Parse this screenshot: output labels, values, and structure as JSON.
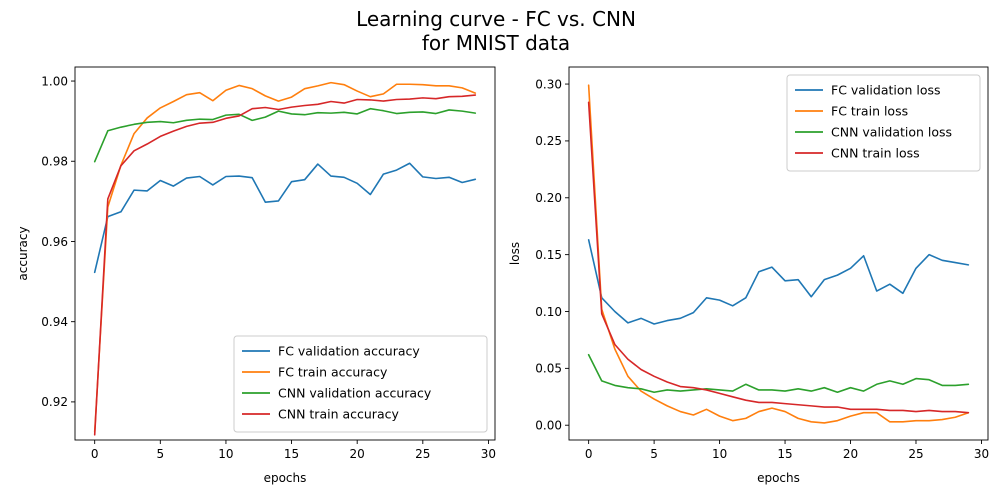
{
  "figure": {
    "title_line1": "Learning curve - FC vs. CNN",
    "title_line2": "for MNIST data"
  },
  "chart_data": [
    {
      "type": "line",
      "xlabel": "epochs",
      "ylabel": "accuracy",
      "xlim": [
        -1.5,
        30.5
      ],
      "ylim": [
        0.9105,
        1.0035
      ],
      "xticks": [
        0,
        5,
        10,
        15,
        20,
        25,
        30
      ],
      "yticks": [
        0.92,
        0.94,
        0.96,
        0.98,
        1.0
      ],
      "ytick_labels": [
        "0.92",
        "0.94",
        "0.96",
        "0.98",
        "1.00"
      ],
      "legend_position": "lower-right",
      "x": [
        0,
        1,
        2,
        3,
        4,
        5,
        6,
        7,
        8,
        9,
        10,
        11,
        12,
        13,
        14,
        15,
        16,
        17,
        18,
        19,
        20,
        21,
        22,
        23,
        24,
        25,
        26,
        27,
        28,
        29
      ],
      "series": [
        {
          "name": "FC validation accuracy",
          "color": "#1f77b4",
          "values": [
            0.9523,
            0.9662,
            0.9674,
            0.9728,
            0.9726,
            0.9752,
            0.9738,
            0.9758,
            0.9762,
            0.9741,
            0.9762,
            0.9763,
            0.9759,
            0.9698,
            0.9701,
            0.9749,
            0.9754,
            0.9793,
            0.9763,
            0.976,
            0.9745,
            0.9717,
            0.9768,
            0.9778,
            0.9795,
            0.9761,
            0.9757,
            0.976,
            0.9747,
            0.9755
          ]
        },
        {
          "name": "FC train accuracy",
          "color": "#ff7f0e",
          "values": [
            0.9125,
            0.9686,
            0.979,
            0.9869,
            0.9908,
            0.9933,
            0.9949,
            0.9966,
            0.9971,
            0.9951,
            0.9977,
            0.9989,
            0.9981,
            0.9963,
            0.995,
            0.996,
            0.9981,
            0.9988,
            0.9996,
            0.9991,
            0.9975,
            0.9961,
            0.9968,
            0.9992,
            0.9992,
            0.9991,
            0.9988,
            0.9988,
            0.9983,
            0.997
          ]
        },
        {
          "name": "CNN validation accuracy",
          "color": "#2ca02c",
          "values": [
            0.9799,
            0.9876,
            0.9885,
            0.9892,
            0.9897,
            0.9899,
            0.9896,
            0.9902,
            0.9905,
            0.9904,
            0.9915,
            0.9917,
            0.9902,
            0.991,
            0.9925,
            0.9918,
            0.9916,
            0.9921,
            0.992,
            0.9922,
            0.9918,
            0.9931,
            0.9926,
            0.9919,
            0.9922,
            0.9923,
            0.9919,
            0.9928,
            0.9925,
            0.992
          ]
        },
        {
          "name": "CNN train accuracy",
          "color": "#d62728",
          "values": [
            0.9118,
            0.9706,
            0.9789,
            0.9826,
            0.9843,
            0.9862,
            0.9875,
            0.9887,
            0.9895,
            0.9897,
            0.9907,
            0.9913,
            0.9931,
            0.9934,
            0.9929,
            0.9935,
            0.9939,
            0.9942,
            0.9949,
            0.9945,
            0.9954,
            0.9953,
            0.995,
            0.9954,
            0.9955,
            0.9958,
            0.9956,
            0.9961,
            0.9962,
            0.9965
          ]
        }
      ]
    },
    {
      "type": "line",
      "xlabel": "epochs",
      "ylabel": "loss",
      "xlim": [
        -1.5,
        30.5
      ],
      "ylim": [
        -0.013,
        0.315
      ],
      "xticks": [
        0,
        5,
        10,
        15,
        20,
        25,
        30
      ],
      "yticks": [
        0.0,
        0.05,
        0.1,
        0.15,
        0.2,
        0.25,
        0.3
      ],
      "ytick_labels": [
        "0.00",
        "0.05",
        "0.10",
        "0.15",
        "0.20",
        "0.25",
        "0.30"
      ],
      "legend_position": "upper-right",
      "x": [
        0,
        1,
        2,
        3,
        4,
        5,
        6,
        7,
        8,
        9,
        10,
        11,
        12,
        13,
        14,
        15,
        16,
        17,
        18,
        19,
        20,
        21,
        22,
        23,
        24,
        25,
        26,
        27,
        28,
        29
      ],
      "series": [
        {
          "name": "FC validation loss",
          "color": "#1f77b4",
          "values": [
            0.163,
            0.112,
            0.1,
            0.09,
            0.094,
            0.089,
            0.092,
            0.094,
            0.099,
            0.112,
            0.11,
            0.105,
            0.112,
            0.135,
            0.139,
            0.127,
            0.128,
            0.113,
            0.128,
            0.132,
            0.138,
            0.149,
            0.118,
            0.124,
            0.116,
            0.138,
            0.15,
            0.145,
            0.143,
            0.141
          ]
        },
        {
          "name": "FC train loss",
          "color": "#ff7f0e",
          "values": [
            0.299,
            0.102,
            0.067,
            0.043,
            0.03,
            0.023,
            0.017,
            0.012,
            0.009,
            0.014,
            0.008,
            0.004,
            0.006,
            0.012,
            0.015,
            0.012,
            0.006,
            0.003,
            0.002,
            0.004,
            0.008,
            0.011,
            0.011,
            0.003,
            0.003,
            0.004,
            0.004,
            0.005,
            0.007,
            0.011
          ]
        },
        {
          "name": "CNN validation loss",
          "color": "#2ca02c",
          "values": [
            0.062,
            0.039,
            0.035,
            0.033,
            0.032,
            0.029,
            0.031,
            0.03,
            0.031,
            0.032,
            0.031,
            0.03,
            0.036,
            0.031,
            0.031,
            0.03,
            0.032,
            0.03,
            0.033,
            0.029,
            0.033,
            0.03,
            0.036,
            0.039,
            0.036,
            0.041,
            0.04,
            0.035,
            0.035,
            0.036
          ]
        },
        {
          "name": "CNN train loss",
          "color": "#d62728",
          "values": [
            0.284,
            0.098,
            0.071,
            0.058,
            0.049,
            0.043,
            0.038,
            0.034,
            0.033,
            0.031,
            0.028,
            0.025,
            0.022,
            0.02,
            0.02,
            0.019,
            0.018,
            0.017,
            0.016,
            0.016,
            0.014,
            0.014,
            0.014,
            0.013,
            0.013,
            0.012,
            0.013,
            0.012,
            0.012,
            0.011
          ]
        }
      ]
    }
  ]
}
